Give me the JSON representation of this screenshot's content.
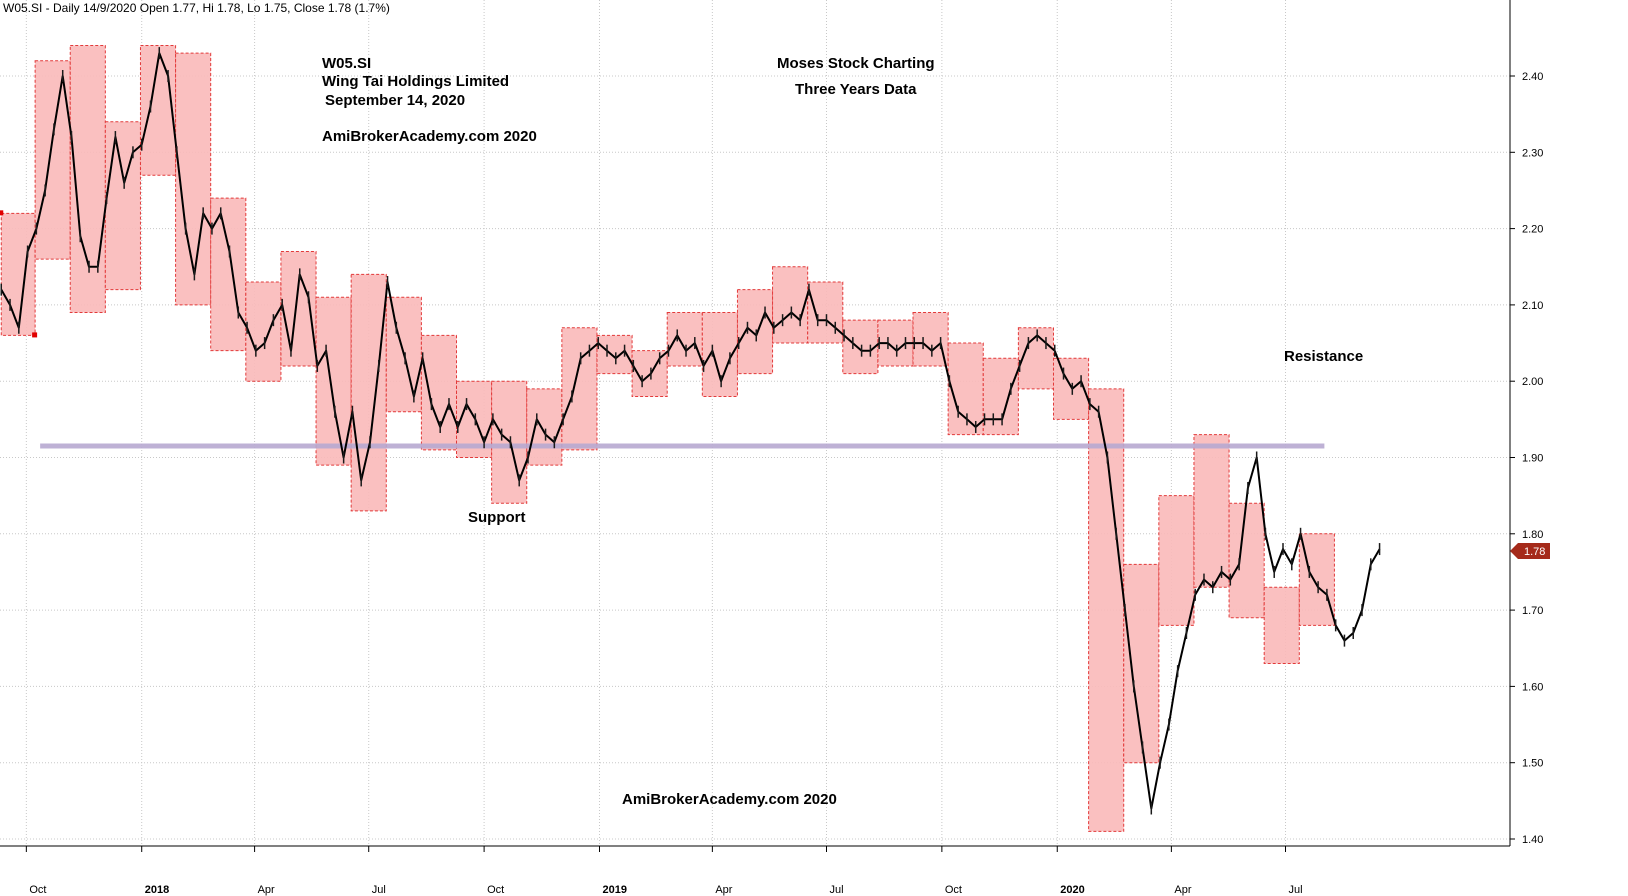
{
  "header": "W05.SI - Daily 14/9/2020 Open 1.77, Hi 1.78, Lo 1.75, Close 1.78 (1.7%)",
  "annotations": {
    "ticker": "W05.SI",
    "company": "Wing Tai Holdings Limited",
    "date": "September 14, 2020",
    "site1": "AmiBrokerAcademy.com  2020",
    "brand": "Moses Stock Charting",
    "range": "Three Years Data",
    "resistance": "Resistance",
    "support": "Support",
    "site2": "AmiBrokerAcademy.com  2020"
  },
  "last_price_label": "1.78",
  "colors": {
    "annotation": "#e8413c",
    "box_fill": "#f9b9b9",
    "box_border": "#e23a3a",
    "support_line": "#b7a8d0",
    "price_tag": "#a52a1a",
    "grid": "#c8c8c8"
  },
  "chart_data": {
    "type": "line",
    "title": "",
    "ylim": [
      1.39,
      2.49
    ],
    "y_ticks": [
      "1.40",
      "1.50",
      "1.60",
      "1.70",
      "1.80",
      "1.90",
      "2.00",
      "2.10",
      "2.20",
      "2.30",
      "2.40"
    ],
    "x_ticks": [
      {
        "label": "Oct",
        "date": "2017-10-01",
        "bold": false
      },
      {
        "label": "2018",
        "date": "2018-01-01",
        "bold": true
      },
      {
        "label": "Apr",
        "date": "2018-04-01",
        "bold": false
      },
      {
        "label": "Jul",
        "date": "2018-07-01",
        "bold": false
      },
      {
        "label": "Oct",
        "date": "2018-10-01",
        "bold": false
      },
      {
        "label": "2019",
        "date": "2019-01-01",
        "bold": true
      },
      {
        "label": "Apr",
        "date": "2019-04-01",
        "bold": false
      },
      {
        "label": "Jul",
        "date": "2019-07-01",
        "bold": false
      },
      {
        "label": "Oct",
        "date": "2019-10-01",
        "bold": false
      },
      {
        "label": "2020",
        "date": "2020-01-01",
        "bold": true
      },
      {
        "label": "Apr",
        "date": "2020-04-01",
        "bold": false
      },
      {
        "label": "Jul",
        "date": "2020-07-01",
        "bold": false
      }
    ],
    "x_range": [
      "2017-09-10",
      "2020-12-27"
    ],
    "support_level": 1.915,
    "support_span": [
      "2017-10-12",
      "2020-08-01"
    ],
    "range_boxes": [
      {
        "start": "2017-09-11",
        "end": "2017-10-08",
        "high": 2.22,
        "low": 2.06
      },
      {
        "start": "2017-10-08",
        "end": "2017-11-05",
        "high": 2.42,
        "low": 2.16
      },
      {
        "start": "2017-11-05",
        "end": "2017-12-03",
        "high": 2.44,
        "low": 2.09
      },
      {
        "start": "2017-12-03",
        "end": "2017-12-31",
        "high": 2.34,
        "low": 2.12
      },
      {
        "start": "2017-12-31",
        "end": "2018-01-28",
        "high": 2.44,
        "low": 2.27
      },
      {
        "start": "2018-01-28",
        "end": "2018-02-25",
        "high": 2.43,
        "low": 2.1
      },
      {
        "start": "2018-02-25",
        "end": "2018-03-25",
        "high": 2.24,
        "low": 2.04
      },
      {
        "start": "2018-03-25",
        "end": "2018-04-22",
        "high": 2.13,
        "low": 2.0
      },
      {
        "start": "2018-04-22",
        "end": "2018-05-20",
        "high": 2.17,
        "low": 2.02
      },
      {
        "start": "2018-05-20",
        "end": "2018-06-17",
        "high": 2.11,
        "low": 1.89
      },
      {
        "start": "2018-06-17",
        "end": "2018-07-15",
        "high": 2.14,
        "low": 1.83
      },
      {
        "start": "2018-07-15",
        "end": "2018-08-12",
        "high": 2.11,
        "low": 1.96
      },
      {
        "start": "2018-08-12",
        "end": "2018-09-09",
        "high": 2.06,
        "low": 1.91
      },
      {
        "start": "2018-09-09",
        "end": "2018-10-07",
        "high": 2.0,
        "low": 1.9
      },
      {
        "start": "2018-10-07",
        "end": "2018-11-04",
        "high": 2.0,
        "low": 1.84
      },
      {
        "start": "2018-11-04",
        "end": "2018-12-02",
        "high": 1.99,
        "low": 1.89
      },
      {
        "start": "2018-12-02",
        "end": "2018-12-30",
        "high": 2.07,
        "low": 1.91
      },
      {
        "start": "2018-12-30",
        "end": "2019-01-27",
        "high": 2.06,
        "low": 2.01
      },
      {
        "start": "2019-01-27",
        "end": "2019-02-24",
        "high": 2.04,
        "low": 1.98
      },
      {
        "start": "2019-02-24",
        "end": "2019-03-24",
        "high": 2.09,
        "low": 2.02
      },
      {
        "start": "2019-03-24",
        "end": "2019-04-21",
        "high": 2.09,
        "low": 1.98
      },
      {
        "start": "2019-04-21",
        "end": "2019-05-19",
        "high": 2.12,
        "low": 2.01
      },
      {
        "start": "2019-05-19",
        "end": "2019-06-16",
        "high": 2.15,
        "low": 2.05
      },
      {
        "start": "2019-06-16",
        "end": "2019-07-14",
        "high": 2.13,
        "low": 2.05
      },
      {
        "start": "2019-07-14",
        "end": "2019-08-11",
        "high": 2.08,
        "low": 2.01
      },
      {
        "start": "2019-08-11",
        "end": "2019-09-08",
        "high": 2.08,
        "low": 2.02
      },
      {
        "start": "2019-09-08",
        "end": "2019-10-06",
        "high": 2.09,
        "low": 2.02
      },
      {
        "start": "2019-10-06",
        "end": "2019-11-03",
        "high": 2.05,
        "low": 1.93
      },
      {
        "start": "2019-11-03",
        "end": "2019-12-01",
        "high": 2.03,
        "low": 1.93
      },
      {
        "start": "2019-12-01",
        "end": "2019-12-29",
        "high": 2.07,
        "low": 1.99
      },
      {
        "start": "2019-12-29",
        "end": "2020-01-26",
        "high": 2.03,
        "low": 1.95
      },
      {
        "start": "2020-01-26",
        "end": "2020-02-23",
        "high": 1.99,
        "low": 1.41
      },
      {
        "start": "2020-02-23",
        "end": "2020-03-22",
        "high": 1.76,
        "low": 1.5
      },
      {
        "start": "2020-03-22",
        "end": "2020-04-19",
        "high": 1.85,
        "low": 1.68
      },
      {
        "start": "2020-04-19",
        "end": "2020-05-17",
        "high": 1.93,
        "low": 1.73
      },
      {
        "start": "2020-05-17",
        "end": "2020-06-14",
        "high": 1.84,
        "low": 1.69
      },
      {
        "start": "2020-06-14",
        "end": "2020-07-12",
        "high": 1.73,
        "low": 1.63
      },
      {
        "start": "2020-07-12",
        "end": "2020-08-09",
        "high": 1.8,
        "low": 1.68
      }
    ],
    "close_series": [
      [
        "2017-09-11",
        2.12
      ],
      [
        "2017-09-18",
        2.1
      ],
      [
        "2017-09-25",
        2.07
      ],
      [
        "2017-10-02",
        2.17
      ],
      [
        "2017-10-09",
        2.2
      ],
      [
        "2017-10-16",
        2.25
      ],
      [
        "2017-10-23",
        2.33
      ],
      [
        "2017-10-30",
        2.4
      ],
      [
        "2017-11-06",
        2.32
      ],
      [
        "2017-11-13",
        2.19
      ],
      [
        "2017-11-20",
        2.15
      ],
      [
        "2017-11-27",
        2.15
      ],
      [
        "2017-12-04",
        2.24
      ],
      [
        "2017-12-11",
        2.32
      ],
      [
        "2017-12-18",
        2.26
      ],
      [
        "2017-12-25",
        2.3
      ],
      [
        "2018-01-01",
        2.31
      ],
      [
        "2018-01-08",
        2.36
      ],
      [
        "2018-01-15",
        2.43
      ],
      [
        "2018-01-22",
        2.4
      ],
      [
        "2018-01-29",
        2.3
      ],
      [
        "2018-02-05",
        2.2
      ],
      [
        "2018-02-12",
        2.14
      ],
      [
        "2018-02-19",
        2.22
      ],
      [
        "2018-02-26",
        2.2
      ],
      [
        "2018-03-05",
        2.22
      ],
      [
        "2018-03-12",
        2.17
      ],
      [
        "2018-03-19",
        2.09
      ],
      [
        "2018-03-26",
        2.07
      ],
      [
        "2018-04-02",
        2.04
      ],
      [
        "2018-04-09",
        2.05
      ],
      [
        "2018-04-16",
        2.08
      ],
      [
        "2018-04-23",
        2.1
      ],
      [
        "2018-04-30",
        2.04
      ],
      [
        "2018-05-07",
        2.14
      ],
      [
        "2018-05-14",
        2.11
      ],
      [
        "2018-05-21",
        2.02
      ],
      [
        "2018-05-28",
        2.04
      ],
      [
        "2018-06-04",
        1.96
      ],
      [
        "2018-06-11",
        1.9
      ],
      [
        "2018-06-18",
        1.96
      ],
      [
        "2018-06-25",
        1.87
      ],
      [
        "2018-07-02",
        1.92
      ],
      [
        "2018-07-09",
        2.02
      ],
      [
        "2018-07-16",
        2.13
      ],
      [
        "2018-07-23",
        2.07
      ],
      [
        "2018-07-30",
        2.03
      ],
      [
        "2018-08-06",
        1.98
      ],
      [
        "2018-08-13",
        2.03
      ],
      [
        "2018-08-20",
        1.97
      ],
      [
        "2018-08-27",
        1.94
      ],
      [
        "2018-09-03",
        1.97
      ],
      [
        "2018-09-10",
        1.94
      ],
      [
        "2018-09-17",
        1.97
      ],
      [
        "2018-09-24",
        1.95
      ],
      [
        "2018-10-01",
        1.92
      ],
      [
        "2018-10-08",
        1.95
      ],
      [
        "2018-10-15",
        1.93
      ],
      [
        "2018-10-22",
        1.92
      ],
      [
        "2018-10-29",
        1.87
      ],
      [
        "2018-11-05",
        1.9
      ],
      [
        "2018-11-12",
        1.95
      ],
      [
        "2018-11-19",
        1.93
      ],
      [
        "2018-11-26",
        1.92
      ],
      [
        "2018-12-03",
        1.95
      ],
      [
        "2018-12-10",
        1.98
      ],
      [
        "2018-12-17",
        2.03
      ],
      [
        "2018-12-24",
        2.04
      ],
      [
        "2018-12-31",
        2.05
      ],
      [
        "2019-01-07",
        2.04
      ],
      [
        "2019-01-14",
        2.03
      ],
      [
        "2019-01-21",
        2.04
      ],
      [
        "2019-01-28",
        2.02
      ],
      [
        "2019-02-04",
        2.0
      ],
      [
        "2019-02-11",
        2.01
      ],
      [
        "2019-02-18",
        2.03
      ],
      [
        "2019-02-25",
        2.04
      ],
      [
        "2019-03-04",
        2.06
      ],
      [
        "2019-03-11",
        2.04
      ],
      [
        "2019-03-18",
        2.05
      ],
      [
        "2019-03-25",
        2.02
      ],
      [
        "2019-04-01",
        2.04
      ],
      [
        "2019-04-08",
        2.0
      ],
      [
        "2019-04-15",
        2.03
      ],
      [
        "2019-04-22",
        2.05
      ],
      [
        "2019-04-29",
        2.07
      ],
      [
        "2019-05-06",
        2.06
      ],
      [
        "2019-05-13",
        2.09
      ],
      [
        "2019-05-20",
        2.07
      ],
      [
        "2019-05-27",
        2.08
      ],
      [
        "2019-06-03",
        2.09
      ],
      [
        "2019-06-10",
        2.08
      ],
      [
        "2019-06-17",
        2.12
      ],
      [
        "2019-06-24",
        2.08
      ],
      [
        "2019-07-01",
        2.08
      ],
      [
        "2019-07-08",
        2.07
      ],
      [
        "2019-07-15",
        2.06
      ],
      [
        "2019-07-22",
        2.05
      ],
      [
        "2019-07-29",
        2.04
      ],
      [
        "2019-08-05",
        2.04
      ],
      [
        "2019-08-12",
        2.05
      ],
      [
        "2019-08-19",
        2.05
      ],
      [
        "2019-08-26",
        2.04
      ],
      [
        "2019-09-02",
        2.05
      ],
      [
        "2019-09-09",
        2.05
      ],
      [
        "2019-09-16",
        2.05
      ],
      [
        "2019-09-23",
        2.04
      ],
      [
        "2019-09-30",
        2.05
      ],
      [
        "2019-10-07",
        2.0
      ],
      [
        "2019-10-14",
        1.96
      ],
      [
        "2019-10-21",
        1.95
      ],
      [
        "2019-10-28",
        1.94
      ],
      [
        "2019-11-04",
        1.95
      ],
      [
        "2019-11-11",
        1.95
      ],
      [
        "2019-11-18",
        1.95
      ],
      [
        "2019-11-25",
        1.99
      ],
      [
        "2019-12-02",
        2.02
      ],
      [
        "2019-12-09",
        2.05
      ],
      [
        "2019-12-16",
        2.06
      ],
      [
        "2019-12-23",
        2.05
      ],
      [
        "2019-12-30",
        2.04
      ],
      [
        "2020-01-06",
        2.01
      ],
      [
        "2020-01-13",
        1.99
      ],
      [
        "2020-01-20",
        2.0
      ],
      [
        "2020-01-27",
        1.97
      ],
      [
        "2020-02-03",
        1.96
      ],
      [
        "2020-02-10",
        1.9
      ],
      [
        "2020-02-17",
        1.8
      ],
      [
        "2020-02-24",
        1.7
      ],
      [
        "2020-03-02",
        1.6
      ],
      [
        "2020-03-09",
        1.52
      ],
      [
        "2020-03-16",
        1.44
      ],
      [
        "2020-03-23",
        1.5
      ],
      [
        "2020-03-30",
        1.55
      ],
      [
        "2020-04-06",
        1.62
      ],
      [
        "2020-04-13",
        1.67
      ],
      [
        "2020-04-20",
        1.72
      ],
      [
        "2020-04-27",
        1.74
      ],
      [
        "2020-05-04",
        1.73
      ],
      [
        "2020-05-11",
        1.75
      ],
      [
        "2020-05-18",
        1.74
      ],
      [
        "2020-05-25",
        1.76
      ],
      [
        "2020-06-01",
        1.86
      ],
      [
        "2020-06-08",
        1.9
      ],
      [
        "2020-06-15",
        1.8
      ],
      [
        "2020-06-22",
        1.75
      ],
      [
        "2020-06-29",
        1.78
      ],
      [
        "2020-07-06",
        1.76
      ],
      [
        "2020-07-13",
        1.8
      ],
      [
        "2020-07-20",
        1.75
      ],
      [
        "2020-07-27",
        1.73
      ],
      [
        "2020-08-03",
        1.72
      ],
      [
        "2020-08-10",
        1.68
      ],
      [
        "2020-08-17",
        1.66
      ],
      [
        "2020-08-24",
        1.67
      ],
      [
        "2020-08-31",
        1.7
      ],
      [
        "2020-09-07",
        1.76
      ],
      [
        "2020-09-14",
        1.78
      ]
    ]
  }
}
